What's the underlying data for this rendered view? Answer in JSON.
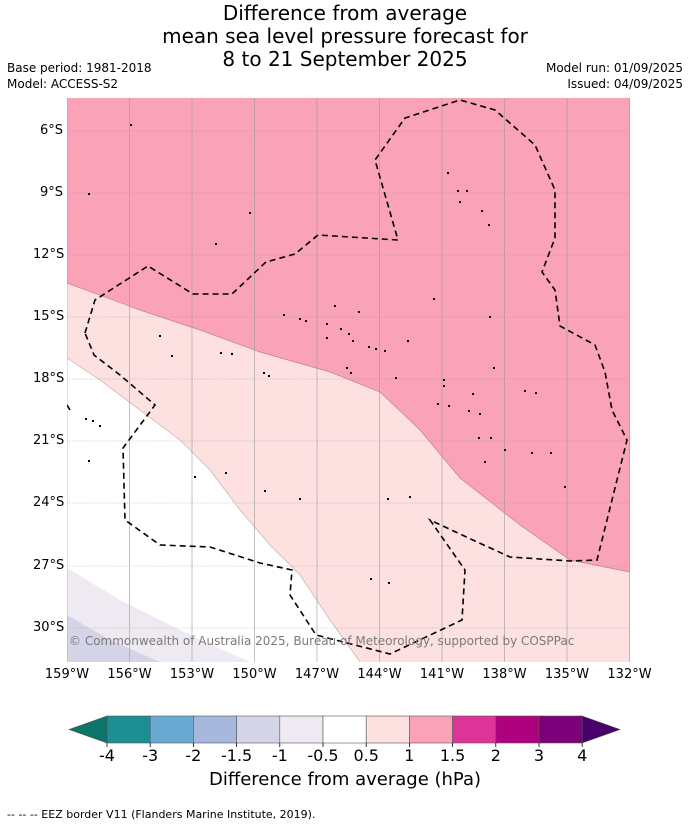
{
  "title": {
    "line1": "Difference from average",
    "line2": "mean sea level pressure forecast for",
    "line3": "8 to 21 September 2025"
  },
  "meta_left": {
    "base_period": "Base period: 1981-2018",
    "model": "Model: ACCESS-S2"
  },
  "meta_right": {
    "model_run": "Model run: 01/09/2025",
    "issued": "Issued: 04/09/2025"
  },
  "map": {
    "lat_labels": [
      "6°S",
      "9°S",
      "12°S",
      "15°S",
      "18°S",
      "21°S",
      "24°S",
      "27°S",
      "30°S"
    ],
    "lon_labels": [
      "159°W",
      "156°W",
      "153°W",
      "150°W",
      "147°W",
      "144°W",
      "141°W",
      "138°W",
      "135°W",
      "132°W"
    ],
    "copyright": "© Commonwealth of Australia 2025, Bureau of Meteorology, supported by COSPPac",
    "fill_colors": {
      "above_1": "#f9a2b8",
      "from_0_5_to_1": "#fde0e0",
      "from_-1_to_-0_5": "#efe9f2",
      "from_-1_5_to_-1": "#d4d4e8"
    }
  },
  "colorbar": {
    "tick_labels": [
      "-4",
      "-3",
      "-2",
      "-1.5",
      "-1",
      "-0.5",
      "0.5",
      "1",
      "1.5",
      "2",
      "3",
      "4"
    ],
    "colors": [
      "#1b8f91",
      "#6aa9d1",
      "#a7b8dd",
      "#d4d4e8",
      "#efe9f2",
      "#ffffff",
      "#fde0e0",
      "#f9a2b8",
      "#dd3497",
      "#ae017e",
      "#7a0177"
    ],
    "under_color": "#0c7468",
    "over_color": "#49006a",
    "title": "Difference from average (hPa)"
  },
  "footer": "--  --  -- EEZ border V11 (Flanders Marine Institute, 2019)."
}
